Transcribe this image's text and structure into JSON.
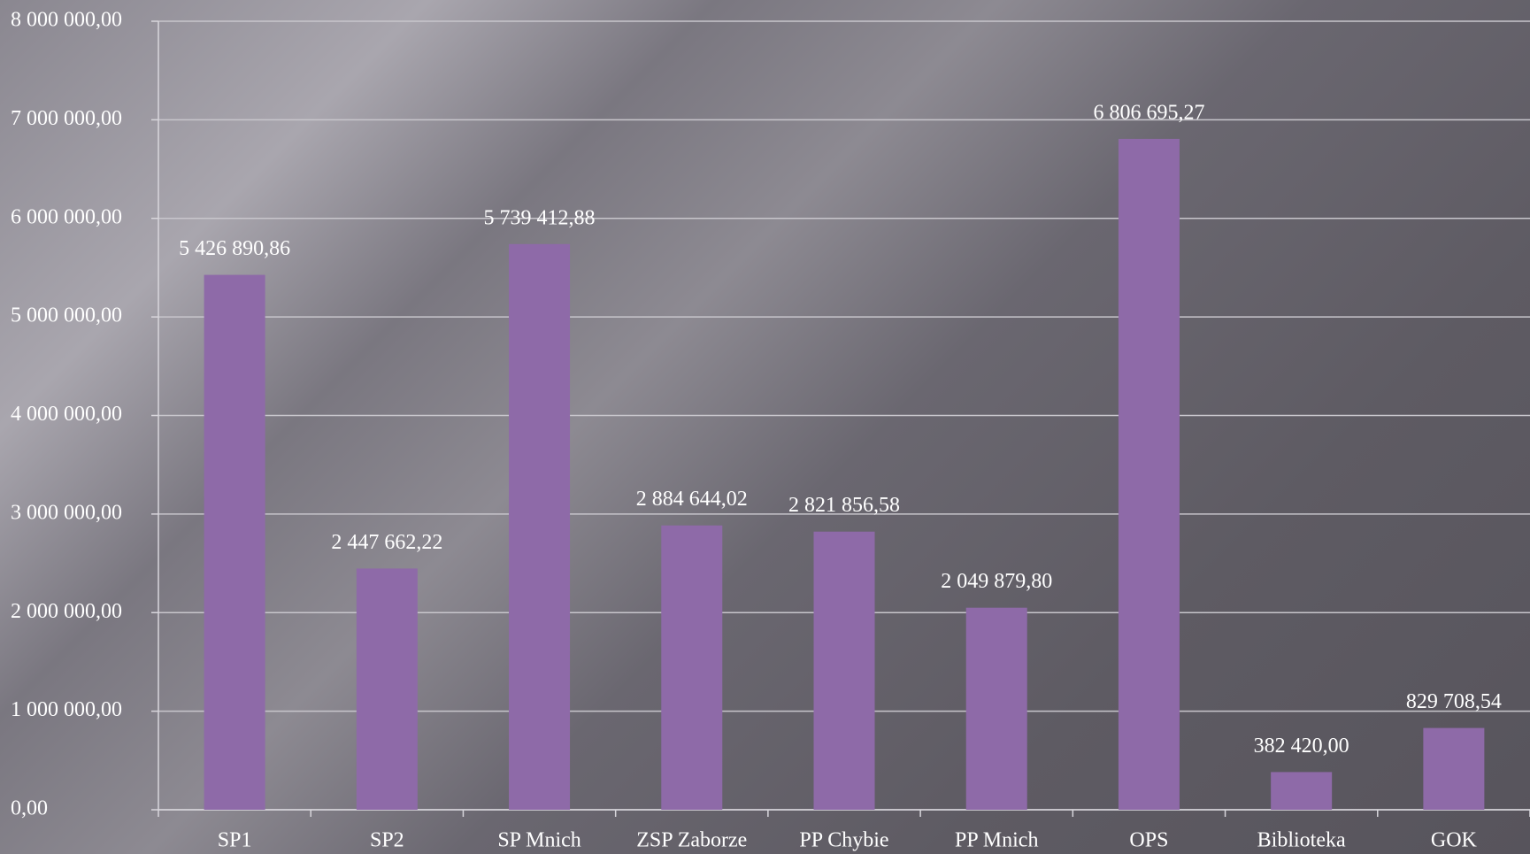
{
  "chart_data": {
    "type": "bar",
    "categories": [
      "SP1",
      "SP2",
      "SP Mnich",
      "ZSP Zaborze",
      "PP Chybie",
      "PP Mnich",
      "OPS",
      "Biblioteka",
      "GOK"
    ],
    "values": [
      5426890.86,
      2447662.22,
      5739412.88,
      2884644.02,
      2821856.58,
      2049879.8,
      6806695.27,
      382420.0,
      829708.54
    ],
    "value_labels": [
      "5 426 890,86",
      "2 447 662,22",
      "5 739 412,88",
      "2 884 644,02",
      "2 821 856,58",
      "2 049 879,80",
      "6 806 695,27",
      "382 420,00",
      "829 708,54"
    ],
    "color": "#8e6aa8",
    "ylim": [
      0,
      8000000
    ],
    "yticks": [
      {
        "value": 0,
        "label": "0,00"
      },
      {
        "value": 1000000,
        "label": "1 000 000,00"
      },
      {
        "value": 2000000,
        "label": "2 000 000,00"
      },
      {
        "value": 3000000,
        "label": "3 000 000,00"
      },
      {
        "value": 4000000,
        "label": "4 000 000,00"
      },
      {
        "value": 5000000,
        "label": "5 000 000,00"
      },
      {
        "value": 6000000,
        "label": "6 000 000,00"
      },
      {
        "value": 7000000,
        "label": "7 000 000,00"
      },
      {
        "value": 8000000,
        "label": "8 000 000,00"
      }
    ],
    "grid": true
  }
}
